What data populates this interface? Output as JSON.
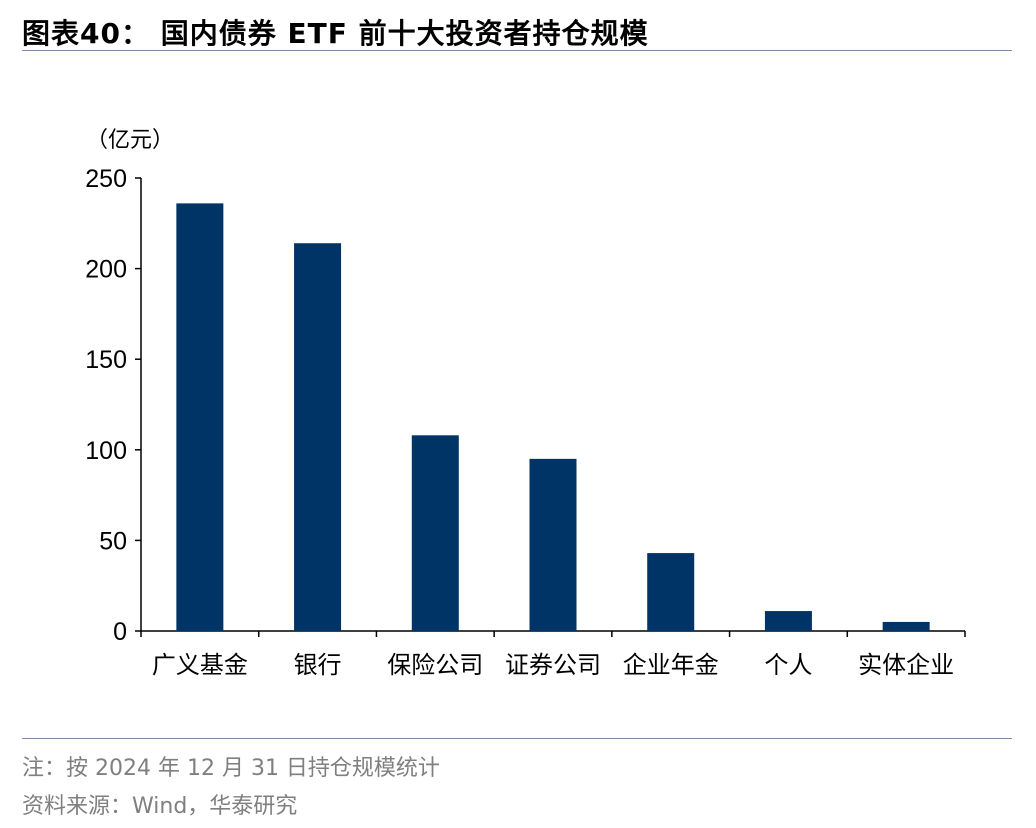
{
  "figure": {
    "title": "图表40： 国内债券 ETF 前十大投资者持仓规模",
    "note": "注：按 2024 年 12 月 31 日持仓规模统计",
    "source": "资料来源：Wind，华泰研究"
  },
  "chart_data": {
    "type": "bar",
    "title": "图表40： 国内债券 ETF 前十大投资者持仓规模",
    "ylabel": "（亿元）",
    "xlabel": "",
    "categories": [
      "广义基金",
      "银行",
      "保险公司",
      "证券公司",
      "企业年金",
      "个人",
      "实体企业"
    ],
    "values": [
      236,
      214,
      108,
      95,
      43,
      11,
      5
    ],
    "ylim": [
      0,
      250
    ],
    "yticks": [
      0,
      50,
      100,
      150,
      200,
      250
    ],
    "grid": false,
    "legend": "none",
    "bar_color": "#003366"
  }
}
